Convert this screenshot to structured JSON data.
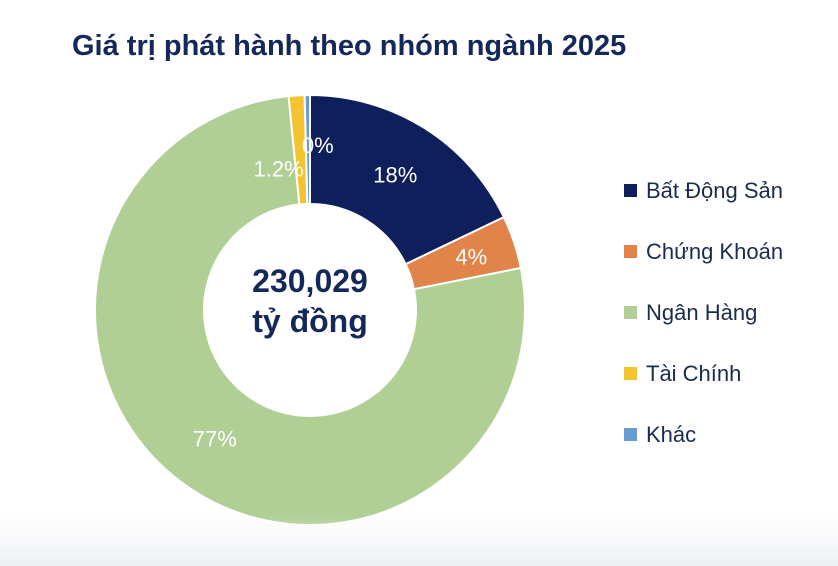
{
  "title": "Giá trị phát hành theo nhóm ngành 2025",
  "chart_data": {
    "type": "pie",
    "donut": true,
    "center_label": [
      "230,029",
      "tỷ đồng"
    ],
    "legend_position": "right",
    "slices": [
      {
        "name": "Bất Động Sản",
        "value": 18,
        "label": "18%",
        "color": "#0f1f5c"
      },
      {
        "name": "Chứng Khoán",
        "value": 4,
        "label": "4%",
        "color": "#e0844a"
      },
      {
        "name": "Ngân Hàng",
        "value": 77,
        "label": "77%",
        "color": "#b0cf95"
      },
      {
        "name": "Tài Chính",
        "value": 1.2,
        "label": "1.2%",
        "color": "#f4c430"
      },
      {
        "name": "Khác",
        "value": 0.4,
        "label": "0%",
        "color": "#6a9bd2"
      }
    ]
  }
}
